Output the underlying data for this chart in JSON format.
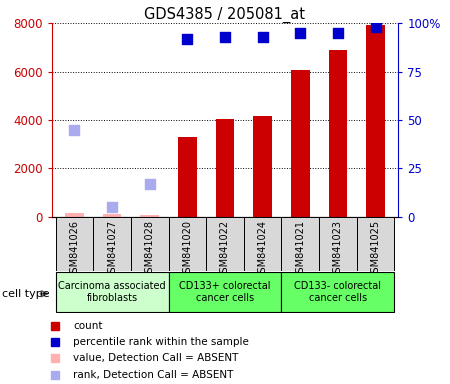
{
  "title": "GDS4385 / 205081_at",
  "samples": [
    "GSM841026",
    "GSM841027",
    "GSM841028",
    "GSM841020",
    "GSM841022",
    "GSM841024",
    "GSM841021",
    "GSM841023",
    "GSM841025"
  ],
  "count_values": [
    150,
    120,
    80,
    3300,
    4050,
    4180,
    6050,
    6900,
    7900
  ],
  "rank_values": [
    45,
    5,
    17,
    92,
    93,
    93,
    95,
    95,
    98
  ],
  "absent_indices": [
    0,
    1,
    2
  ],
  "ylim_left": [
    0,
    8000
  ],
  "ylim_right": [
    0,
    100
  ],
  "yticks_left": [
    0,
    2000,
    4000,
    6000,
    8000
  ],
  "yticks_right": [
    0,
    25,
    50,
    75,
    100
  ],
  "yticklabels_right": [
    "0",
    "25",
    "50",
    "75",
    "100%"
  ],
  "bar_color": "#cc0000",
  "absent_bar_color": "#ffb0b0",
  "rank_color": "#0000cc",
  "absent_rank_color": "#aaaaee",
  "axis_color_left": "#cc0000",
  "axis_color_right": "#0000cc",
  "bar_width": 0.5,
  "rank_markersize": 55,
  "group_colors": [
    "#ccffcc",
    "#66ff66",
    "#66ff66"
  ],
  "group_labels": [
    "Carcinoma associated\nfibroblasts",
    "CD133+ colorectal\ncancer cells",
    "CD133- colorectal\ncancer cells"
  ],
  "group_ranges": [
    [
      0,
      2
    ],
    [
      3,
      5
    ],
    [
      6,
      8
    ]
  ]
}
